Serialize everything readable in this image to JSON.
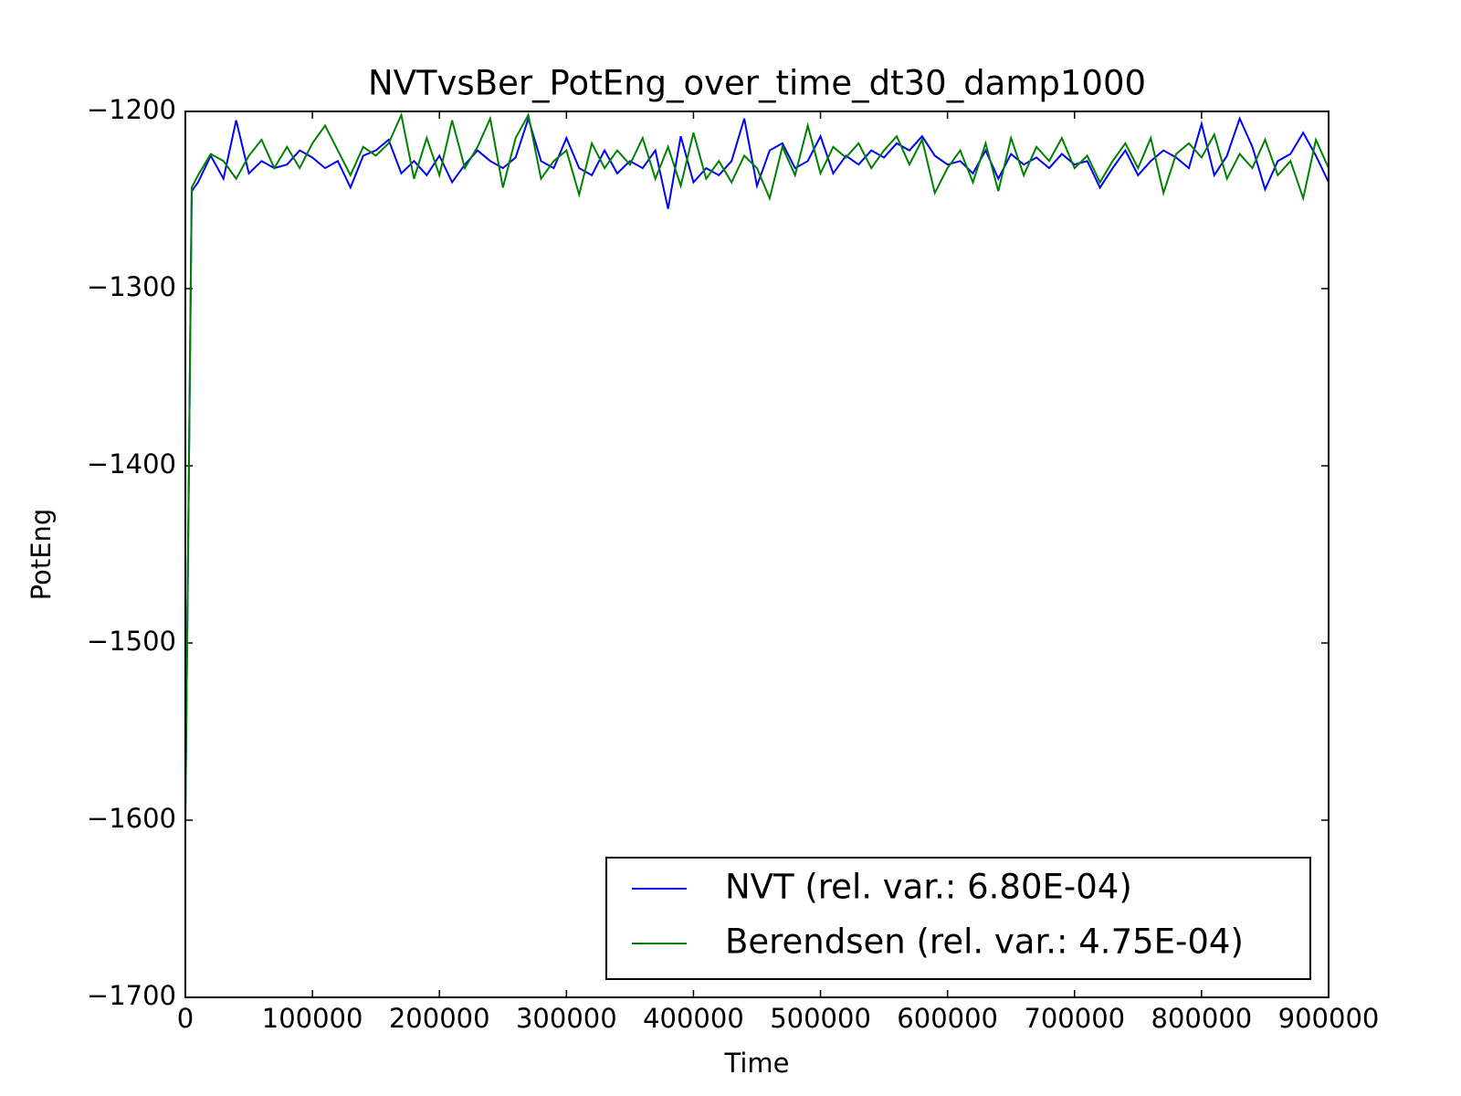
{
  "chart_data": {
    "type": "line",
    "title": "NVTvsBer_PotEng_over_time_dt30_damp1000",
    "x_label": "Time",
    "y_label": "PotEng",
    "x": [
      0,
      5000,
      10000,
      20000,
      30000,
      40000,
      50000,
      60000,
      70000,
      80000,
      90000,
      100000,
      110000,
      120000,
      130000,
      140000,
      150000,
      160000,
      170000,
      180000,
      190000,
      200000,
      210000,
      220000,
      230000,
      240000,
      250000,
      260000,
      270000,
      280000,
      290000,
      300000,
      310000,
      320000,
      330000,
      340000,
      350000,
      360000,
      370000,
      380000,
      390000,
      400000,
      410000,
      420000,
      430000,
      440000,
      450000,
      460000,
      470000,
      480000,
      490000,
      500000,
      510000,
      520000,
      530000,
      540000,
      550000,
      560000,
      570000,
      580000,
      590000,
      600000,
      610000,
      620000,
      630000,
      640000,
      650000,
      660000,
      670000,
      680000,
      690000,
      700000,
      710000,
      720000,
      730000,
      740000,
      750000,
      760000,
      770000,
      780000,
      790000,
      800000,
      810000,
      820000,
      830000,
      840000,
      850000,
      860000,
      870000,
      880000,
      890000,
      900000
    ],
    "series": [
      {
        "name": "NVT (rel. var.: 6.80E-04)",
        "color": "#0000ff",
        "values": [
          -1600,
          -1245,
          -1240,
          -1225,
          -1238,
          -1205,
          -1235,
          -1228,
          -1232,
          -1230,
          -1222,
          -1226,
          -1232,
          -1228,
          -1243,
          -1225,
          -1222,
          -1216,
          -1235,
          -1228,
          -1236,
          -1225,
          -1240,
          -1230,
          -1222,
          -1228,
          -1232,
          -1226,
          -1204,
          -1228,
          -1232,
          -1215,
          -1232,
          -1236,
          -1222,
          -1235,
          -1228,
          -1232,
          -1222,
          -1255,
          -1214,
          -1240,
          -1232,
          -1236,
          -1228,
          -1204,
          -1242,
          -1222,
          -1218,
          -1232,
          -1228,
          -1214,
          -1235,
          -1225,
          -1230,
          -1222,
          -1226,
          -1218,
          -1222,
          -1214,
          -1225,
          -1230,
          -1228,
          -1235,
          -1222,
          -1238,
          -1224,
          -1230,
          -1226,
          -1232,
          -1224,
          -1230,
          -1228,
          -1243,
          -1232,
          -1222,
          -1236,
          -1228,
          -1222,
          -1226,
          -1232,
          -1207,
          -1236,
          -1225,
          -1204,
          -1220,
          -1244,
          -1228,
          -1224,
          -1212,
          -1225,
          -1240
        ]
      },
      {
        "name": "Berendsen (rel. var.: 4.75E-04)",
        "color": "#008000",
        "values": [
          -1600,
          -1243,
          -1236,
          -1224,
          -1228,
          -1238,
          -1225,
          -1216,
          -1232,
          -1220,
          -1232,
          -1218,
          -1208,
          -1222,
          -1236,
          -1220,
          -1225,
          -1218,
          -1202,
          -1238,
          -1215,
          -1236,
          -1205,
          -1232,
          -1220,
          -1204,
          -1243,
          -1215,
          -1202,
          -1238,
          -1228,
          -1222,
          -1247,
          -1218,
          -1232,
          -1222,
          -1230,
          -1215,
          -1238,
          -1220,
          -1242,
          -1212,
          -1238,
          -1228,
          -1240,
          -1225,
          -1232,
          -1249,
          -1220,
          -1236,
          -1208,
          -1235,
          -1220,
          -1226,
          -1218,
          -1232,
          -1222,
          -1214,
          -1230,
          -1216,
          -1246,
          -1232,
          -1222,
          -1240,
          -1218,
          -1245,
          -1215,
          -1236,
          -1220,
          -1228,
          -1215,
          -1232,
          -1225,
          -1240,
          -1228,
          -1218,
          -1232,
          -1215,
          -1246,
          -1224,
          -1218,
          -1226,
          -1213,
          -1238,
          -1224,
          -1232,
          -1216,
          -1236,
          -1228,
          -1249,
          -1216,
          -1232
        ]
      }
    ],
    "xlim": [
      0,
      900000
    ],
    "xticks": [
      0,
      100000,
      200000,
      300000,
      400000,
      500000,
      600000,
      700000,
      800000,
      900000
    ],
    "ylim": [
      -1700,
      -1200
    ],
    "yticks": [
      {
        "value": -1700,
        "label": "−1700"
      },
      {
        "value": -1600,
        "label": "−1600"
      },
      {
        "value": -1500,
        "label": "−1500"
      },
      {
        "value": -1400,
        "label": "−1400"
      },
      {
        "value": -1300,
        "label": "−1300"
      },
      {
        "value": -1200,
        "label": "−1200"
      }
    ],
    "grid": false,
    "legend": "lower right"
  }
}
